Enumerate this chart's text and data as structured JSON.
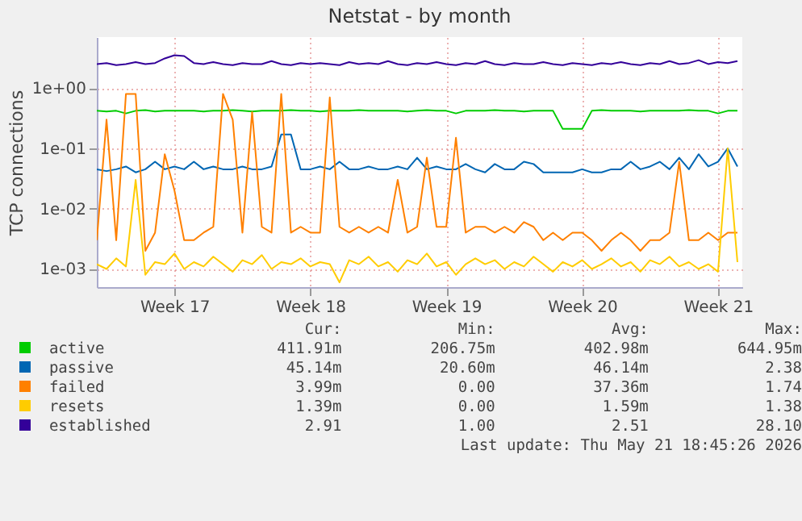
{
  "chart_data": {
    "type": "line",
    "title": "Netstat - by month",
    "ylabel": "TCP connections",
    "log": "y",
    "grid": true,
    "legend": "bottom",
    "marker": "none",
    "line_style": "solid",
    "xlim": [
      "2026-04-19T12:00",
      "2026-05-22T18:00"
    ],
    "xticks": [
      {
        "value": "2026-04-23T12:00",
        "label": "Week 17"
      },
      {
        "value": "2026-04-30T12:00",
        "label": "Week 18"
      },
      {
        "value": "2026-05-07T12:00",
        "label": "Week 19"
      },
      {
        "value": "2026-05-14T12:00",
        "label": "Week 20"
      },
      {
        "value": "2026-05-21T12:00",
        "label": "Week 21"
      }
    ],
    "ylim": [
      0.0005,
      7
    ],
    "yticks": [
      {
        "value": 0.001,
        "label": "1e-03"
      },
      {
        "value": 0.01,
        "label": "1e-02"
      },
      {
        "value": 0.1,
        "label": "1e-01"
      },
      {
        "value": 1,
        "label": "1e+00"
      }
    ],
    "x": [
      "2026-04-19T12:00",
      "2026-04-20T00:00",
      "2026-04-20T12:00",
      "2026-04-21T00:00",
      "2026-04-21T12:00",
      "2026-04-22T00:00",
      "2026-04-22T12:00",
      "2026-04-23T00:00",
      "2026-04-23T12:00",
      "2026-04-24T00:00",
      "2026-04-24T12:00",
      "2026-04-25T00:00",
      "2026-04-25T12:00",
      "2026-04-26T00:00",
      "2026-04-26T12:00",
      "2026-04-27T00:00",
      "2026-04-27T12:00",
      "2026-04-28T00:00",
      "2026-04-28T12:00",
      "2026-04-29T00:00",
      "2026-04-29T12:00",
      "2026-04-30T00:00",
      "2026-04-30T12:00",
      "2026-05-01T00:00",
      "2026-05-01T12:00",
      "2026-05-02T00:00",
      "2026-05-02T12:00",
      "2026-05-03T00:00",
      "2026-05-03T12:00",
      "2026-05-04T00:00",
      "2026-05-04T12:00",
      "2026-05-05T00:00",
      "2026-05-05T12:00",
      "2026-05-06T00:00",
      "2026-05-06T12:00",
      "2026-05-07T00:00",
      "2026-05-07T12:00",
      "2026-05-08T00:00",
      "2026-05-08T12:00",
      "2026-05-09T00:00",
      "2026-05-09T12:00",
      "2026-05-10T00:00",
      "2026-05-10T12:00",
      "2026-05-11T00:00",
      "2026-05-11T12:00",
      "2026-05-12T00:00",
      "2026-05-12T12:00",
      "2026-05-13T00:00",
      "2026-05-13T12:00",
      "2026-05-14T00:00",
      "2026-05-14T12:00",
      "2026-05-15T00:00",
      "2026-05-15T12:00",
      "2026-05-16T00:00",
      "2026-05-16T12:00",
      "2026-05-17T00:00",
      "2026-05-17T12:00",
      "2026-05-18T00:00",
      "2026-05-18T12:00",
      "2026-05-19T00:00",
      "2026-05-19T12:00",
      "2026-05-20T00:00",
      "2026-05-20T12:00",
      "2026-05-21T00:00",
      "2026-05-21T12:00",
      "2026-05-22T00:00",
      "2026-05-22T12:00"
    ],
    "series": [
      {
        "name": "active",
        "color": "#00cc00",
        "values": [
          0.42,
          0.41,
          0.42,
          0.38,
          0.42,
          0.43,
          0.41,
          0.42,
          0.42,
          0.42,
          0.42,
          0.41,
          0.42,
          0.42,
          0.43,
          0.42,
          0.41,
          0.42,
          0.42,
          0.42,
          0.43,
          0.42,
          0.42,
          0.41,
          0.42,
          0.42,
          0.42,
          0.43,
          0.42,
          0.42,
          0.42,
          0.42,
          0.41,
          0.42,
          0.43,
          0.42,
          0.42,
          0.38,
          0.42,
          0.42,
          0.42,
          0.43,
          0.42,
          0.42,
          0.41,
          0.42,
          0.42,
          0.42,
          0.21,
          0.21,
          0.21,
          0.42,
          0.43,
          0.42,
          0.42,
          0.42,
          0.41,
          0.42,
          0.42,
          0.42,
          0.42,
          0.43,
          0.42,
          0.42,
          0.38,
          0.42,
          0.42
        ]
      },
      {
        "name": "passive",
        "color": "#0066b3",
        "values": [
          0.045,
          0.042,
          0.045,
          0.05,
          0.04,
          0.045,
          0.06,
          0.045,
          0.05,
          0.045,
          0.06,
          0.045,
          0.05,
          0.045,
          0.045,
          0.05,
          0.045,
          0.045,
          0.05,
          0.17,
          0.17,
          0.045,
          0.045,
          0.05,
          0.045,
          0.06,
          0.045,
          0.045,
          0.05,
          0.045,
          0.045,
          0.05,
          0.045,
          0.07,
          0.045,
          0.05,
          0.045,
          0.045,
          0.055,
          0.045,
          0.04,
          0.055,
          0.045,
          0.045,
          0.06,
          0.055,
          0.04,
          0.04,
          0.04,
          0.04,
          0.045,
          0.04,
          0.04,
          0.045,
          0.045,
          0.06,
          0.045,
          0.05,
          0.06,
          0.045,
          0.07,
          0.045,
          0.08,
          0.05,
          0.06,
          0.1,
          0.05
        ]
      },
      {
        "name": "failed",
        "color": "#ff8000",
        "values": [
          0.003,
          0.3,
          0.003,
          0.8,
          0.8,
          0.002,
          0.004,
          0.08,
          0.02,
          0.003,
          0.003,
          0.004,
          0.005,
          0.8,
          0.3,
          0.004,
          0.4,
          0.005,
          0.004,
          0.8,
          0.004,
          0.005,
          0.004,
          0.004,
          0.7,
          0.005,
          0.004,
          0.005,
          0.004,
          0.005,
          0.004,
          0.03,
          0.004,
          0.005,
          0.07,
          0.005,
          0.005,
          0.15,
          0.004,
          0.005,
          0.005,
          0.004,
          0.005,
          0.004,
          0.006,
          0.005,
          0.003,
          0.004,
          0.003,
          0.004,
          0.004,
          0.003,
          0.002,
          0.003,
          0.004,
          0.003,
          0.002,
          0.003,
          0.003,
          0.004,
          0.06,
          0.003,
          0.003,
          0.004,
          0.003,
          0.004,
          0.004
        ]
      },
      {
        "name": "resets",
        "color": "#ffcc00",
        "values": [
          0.0012,
          0.001,
          0.0015,
          0.0011,
          0.03,
          0.0008,
          0.0013,
          0.0012,
          0.0018,
          0.001,
          0.0013,
          0.0011,
          0.0016,
          0.0012,
          0.0009,
          0.0014,
          0.0012,
          0.0017,
          0.001,
          0.0013,
          0.0012,
          0.0015,
          0.0011,
          0.0013,
          0.0012,
          0.0006,
          0.0014,
          0.0012,
          0.0016,
          0.0011,
          0.0013,
          0.0009,
          0.0014,
          0.0012,
          0.0018,
          0.0011,
          0.0013,
          0.0008,
          0.0012,
          0.0015,
          0.0012,
          0.0014,
          0.001,
          0.0013,
          0.0011,
          0.0016,
          0.0012,
          0.0009,
          0.0013,
          0.0011,
          0.0014,
          0.001,
          0.0012,
          0.0015,
          0.0011,
          0.0013,
          0.0009,
          0.0014,
          0.0012,
          0.0016,
          0.0011,
          0.0013,
          0.001,
          0.0012,
          0.0009,
          0.1,
          0.0013
        ]
      },
      {
        "name": "established",
        "color": "#330099",
        "values": [
          2.5,
          2.6,
          2.4,
          2.5,
          2.7,
          2.5,
          2.6,
          3.1,
          3.5,
          3.4,
          2.6,
          2.5,
          2.7,
          2.5,
          2.4,
          2.6,
          2.5,
          2.5,
          2.8,
          2.5,
          2.4,
          2.6,
          2.5,
          2.6,
          2.5,
          2.4,
          2.7,
          2.5,
          2.6,
          2.5,
          2.8,
          2.5,
          2.4,
          2.6,
          2.5,
          2.7,
          2.5,
          2.4,
          2.6,
          2.5,
          2.8,
          2.5,
          2.4,
          2.6,
          2.5,
          2.5,
          2.7,
          2.5,
          2.4,
          2.6,
          2.5,
          2.4,
          2.6,
          2.5,
          2.7,
          2.5,
          2.4,
          2.6,
          2.5,
          2.8,
          2.5,
          2.6,
          2.9,
          2.5,
          2.7,
          2.6,
          2.8
        ]
      }
    ],
    "annotations": [
      "Cur:",
      "Min:",
      "Avg:",
      "Max:",
      "411.91m",
      "206.75m",
      "402.98m",
      "644.95m",
      "45.14m",
      "20.60m",
      "46.14m",
      "2.38",
      "3.99m",
      "0.00",
      "37.36m",
      "1.74",
      "1.39m",
      "0.00",
      "1.59m",
      "1.38",
      "2.91",
      "1.00",
      "2.51",
      "28.10",
      "Last update: Thu May 21 18:45:26 2026"
    ]
  }
}
